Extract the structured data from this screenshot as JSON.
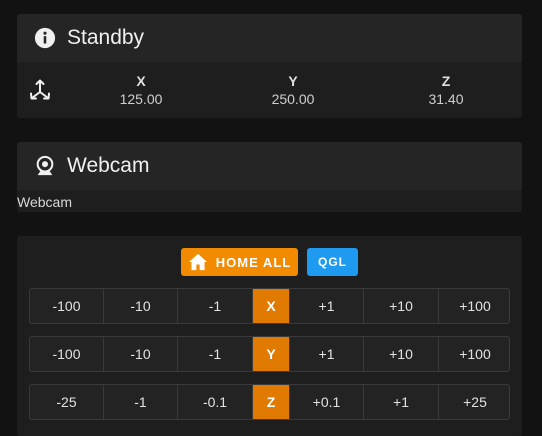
{
  "status": {
    "title": "Standby",
    "icon": "info-icon",
    "axes_icon": "axes-icon",
    "x_label": "X",
    "x_value": "125.00",
    "y_label": "Y",
    "y_value": "250.00",
    "z_label": "Z",
    "z_value": "31.40"
  },
  "webcam": {
    "title": "Webcam",
    "icon": "webcam-icon",
    "body": "Webcam"
  },
  "control": {
    "home_all_label": "HOME ALL",
    "qgl_label": "QGL",
    "home_color": "#f28b00",
    "qgl_color": "#1e9af0",
    "axis_color": "#e07a00",
    "x_row": {
      "axis": "X",
      "neg": [
        "-100",
        "-10",
        "-1"
      ],
      "pos": [
        "+1",
        "+10",
        "+100"
      ]
    },
    "y_row": {
      "axis": "Y",
      "neg": [
        "-100",
        "-10",
        "-1"
      ],
      "pos": [
        "+1",
        "+10",
        "+100"
      ]
    },
    "z_row": {
      "axis": "Z",
      "neg": [
        "-25",
        "-1",
        "-0.1"
      ],
      "pos": [
        "+0.1",
        "+1",
        "+25"
      ]
    }
  }
}
